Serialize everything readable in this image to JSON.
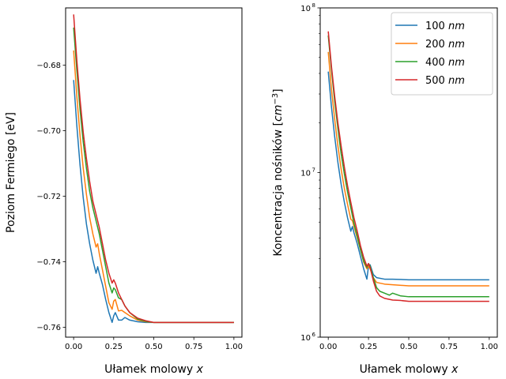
{
  "chart_data": [
    {
      "type": "line",
      "xlabel": "Ułamek molowy",
      "xlabel_var": "x",
      "ylabel": "Poziom Fermiego [eV]",
      "xlim": [
        -0.05,
        1.05
      ],
      "ylim": [
        -0.763,
        -0.6625
      ],
      "xticks": [
        0.0,
        0.25,
        0.5,
        0.75,
        1.0
      ],
      "xtick_labels": [
        "0.00",
        "0.25",
        "0.50",
        "0.75",
        "1.00"
      ],
      "yticks": [
        -0.68,
        -0.7,
        -0.72,
        -0.74,
        -0.76
      ],
      "ytick_labels": [
        "−0.68",
        "−0.70",
        "−0.72",
        "−0.74",
        "−0.76"
      ],
      "series": [
        {
          "name": "100 nm",
          "color": "#1f77b4",
          "x": [
            0.0,
            0.02,
            0.04,
            0.06,
            0.08,
            0.1,
            0.12,
            0.14,
            0.15,
            0.16,
            0.18,
            0.2,
            0.22,
            0.24,
            0.25,
            0.26,
            0.28,
            0.3,
            0.32,
            0.35,
            0.4,
            0.45,
            0.5,
            0.6,
            0.75,
            1.0
          ],
          "y": [
            -0.6845,
            -0.6985,
            -0.7105,
            -0.7205,
            -0.7285,
            -0.7345,
            -0.7395,
            -0.7435,
            -0.7415,
            -0.7435,
            -0.747,
            -0.7515,
            -0.7555,
            -0.7585,
            -0.7565,
            -0.7555,
            -0.7578,
            -0.7578,
            -0.757,
            -0.7578,
            -0.7583,
            -0.7585,
            -0.7585,
            -0.7585,
            -0.7585,
            -0.7585
          ]
        },
        {
          "name": "200 nm",
          "color": "#ff7f0e",
          "x": [
            0.0,
            0.02,
            0.04,
            0.06,
            0.08,
            0.1,
            0.12,
            0.14,
            0.15,
            0.16,
            0.18,
            0.2,
            0.22,
            0.24,
            0.25,
            0.26,
            0.28,
            0.3,
            0.32,
            0.35,
            0.4,
            0.45,
            0.5,
            0.6,
            0.75,
            1.0
          ],
          "y": [
            -0.6755,
            -0.6895,
            -0.7015,
            -0.7115,
            -0.7195,
            -0.7265,
            -0.7315,
            -0.7355,
            -0.7345,
            -0.7375,
            -0.7425,
            -0.7475,
            -0.7525,
            -0.7545,
            -0.752,
            -0.7515,
            -0.755,
            -0.7548,
            -0.7555,
            -0.7565,
            -0.7578,
            -0.7583,
            -0.7585,
            -0.7585,
            -0.7585,
            -0.7585
          ]
        },
        {
          "name": "400 nm",
          "color": "#2ca02c",
          "x": [
            0.0,
            0.02,
            0.04,
            0.06,
            0.08,
            0.1,
            0.12,
            0.14,
            0.16,
            0.18,
            0.2,
            0.22,
            0.24,
            0.25,
            0.26,
            0.28,
            0.3,
            0.32,
            0.35,
            0.4,
            0.45,
            0.5,
            0.6,
            0.75,
            1.0
          ],
          "y": [
            -0.6685,
            -0.6815,
            -0.6935,
            -0.7035,
            -0.7115,
            -0.7185,
            -0.7235,
            -0.7275,
            -0.7315,
            -0.7365,
            -0.7415,
            -0.7465,
            -0.7495,
            -0.748,
            -0.7485,
            -0.751,
            -0.7515,
            -0.7535,
            -0.7555,
            -0.7575,
            -0.7582,
            -0.7585,
            -0.7585,
            -0.7585,
            -0.7585
          ]
        },
        {
          "name": "500 nm",
          "color": "#d62728",
          "x": [
            0.0,
            0.02,
            0.04,
            0.06,
            0.08,
            0.1,
            0.12,
            0.14,
            0.16,
            0.18,
            0.2,
            0.22,
            0.24,
            0.25,
            0.26,
            0.28,
            0.3,
            0.32,
            0.35,
            0.4,
            0.45,
            0.5,
            0.6,
            0.75,
            1.0
          ],
          "y": [
            -0.6645,
            -0.6785,
            -0.6905,
            -0.7005,
            -0.7085,
            -0.7155,
            -0.7215,
            -0.7255,
            -0.7295,
            -0.7345,
            -0.7395,
            -0.7435,
            -0.7465,
            -0.7455,
            -0.7465,
            -0.7495,
            -0.7515,
            -0.7535,
            -0.7555,
            -0.7572,
            -0.758,
            -0.7585,
            -0.7585,
            -0.7585,
            -0.7585
          ]
        }
      ]
    },
    {
      "type": "line",
      "yscale": "log",
      "xlabel": "Ułamek molowy",
      "xlabel_var": "x",
      "ylabel": "Koncentracja nośników [",
      "ylabel_unit_base": "cm",
      "ylabel_unit_exp": "−3",
      "ylabel_end": "]",
      "xlim": [
        -0.05,
        1.05
      ],
      "ylim": [
        1000000,
        100000000
      ],
      "xticks": [
        0.0,
        0.25,
        0.5,
        0.75,
        1.0
      ],
      "xtick_labels": [
        "0.00",
        "0.25",
        "0.50",
        "0.75",
        "1.00"
      ],
      "yticks": [
        1000000,
        10000000,
        100000000
      ],
      "ytick_base": "10",
      "ytick_exps": [
        "6",
        "7",
        "8"
      ],
      "legend": {
        "position": "top-right",
        "entries": [
          {
            "value": "100",
            "unit": "nm",
            "color": "#1f77b4"
          },
          {
            "value": "200",
            "unit": "nm",
            "color": "#ff7f0e"
          },
          {
            "value": "400",
            "unit": "nm",
            "color": "#2ca02c"
          },
          {
            "value": "500",
            "unit": "nm",
            "color": "#d62728"
          }
        ]
      },
      "series": [
        {
          "name": "100 nm",
          "color": "#1f77b4",
          "x": [
            0.0,
            0.02,
            0.04,
            0.06,
            0.08,
            0.1,
            0.12,
            0.14,
            0.15,
            0.16,
            0.18,
            0.2,
            0.22,
            0.24,
            0.25,
            0.26,
            0.28,
            0.3,
            0.35,
            0.4,
            0.5,
            0.75,
            1.0
          ],
          "y": [
            41000000,
            25000000,
            16500000,
            11500000,
            8500000,
            6600000,
            5300000,
            4400000,
            4700000,
            4300000,
            3700000,
            3100000,
            2600000,
            2250000,
            2700000,
            2750000,
            2400000,
            2300000,
            2250000,
            2250000,
            2230000,
            2230000,
            2230000
          ]
        },
        {
          "name": "200 nm",
          "color": "#ff7f0e",
          "x": [
            0.0,
            0.02,
            0.04,
            0.06,
            0.08,
            0.1,
            0.12,
            0.14,
            0.15,
            0.16,
            0.18,
            0.2,
            0.22,
            0.24,
            0.25,
            0.26,
            0.28,
            0.3,
            0.35,
            0.4,
            0.5,
            0.75,
            1.0
          ],
          "y": [
            54000000,
            32000000,
            21000000,
            14500000,
            10500000,
            8000000,
            6400000,
            5200000,
            5100000,
            4700000,
            4000000,
            3400000,
            2850000,
            2600000,
            2700000,
            2600000,
            2300000,
            2150000,
            2100000,
            2080000,
            2050000,
            2050000,
            2050000
          ]
        },
        {
          "name": "400 nm",
          "color": "#2ca02c",
          "x": [
            0.0,
            0.02,
            0.04,
            0.06,
            0.08,
            0.1,
            0.12,
            0.14,
            0.16,
            0.18,
            0.2,
            0.22,
            0.24,
            0.25,
            0.26,
            0.28,
            0.3,
            0.32,
            0.35,
            0.38,
            0.4,
            0.45,
            0.5,
            0.75,
            1.0
          ],
          "y": [
            68000000,
            42000000,
            27000000,
            18500000,
            13000000,
            9800000,
            7600000,
            6100000,
            4900000,
            4100000,
            3400000,
            2900000,
            2650000,
            2800000,
            2700000,
            2300000,
            2000000,
            1900000,
            1850000,
            1800000,
            1850000,
            1780000,
            1760000,
            1760000,
            1760000
          ]
        },
        {
          "name": "500 nm",
          "color": "#d62728",
          "x": [
            0.0,
            0.02,
            0.04,
            0.06,
            0.08,
            0.1,
            0.12,
            0.14,
            0.16,
            0.18,
            0.2,
            0.22,
            0.24,
            0.25,
            0.26,
            0.28,
            0.3,
            0.32,
            0.35,
            0.4,
            0.45,
            0.5,
            0.75,
            1.0
          ],
          "y": [
            72000000,
            44000000,
            29000000,
            20000000,
            14500000,
            10800000,
            8300000,
            6600000,
            5300000,
            4400000,
            3600000,
            3050000,
            2700000,
            2800000,
            2650000,
            2200000,
            1900000,
            1780000,
            1720000,
            1680000,
            1670000,
            1650000,
            1650000,
            1650000
          ]
        }
      ]
    }
  ]
}
